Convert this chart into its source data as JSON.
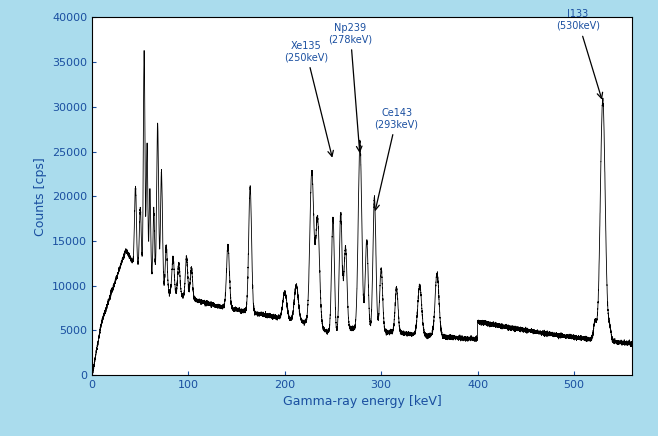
{
  "title": "",
  "xlabel": "Gamma-ray energy [keV]",
  "ylabel": "Counts [cps]",
  "xlim": [
    0,
    560
  ],
  "ylim": [
    0,
    40000
  ],
  "yticks": [
    0,
    5000,
    10000,
    15000,
    20000,
    25000,
    30000,
    35000,
    40000
  ],
  "xticks": [
    0,
    100,
    200,
    300,
    400,
    500
  ],
  "background_color": "#aadced",
  "plot_bg_color": "#ffffff",
  "line_color": "#000000",
  "annotation_color": "#1a4fa0",
  "figsize": [
    6.58,
    4.36
  ],
  "dpi": 100
}
